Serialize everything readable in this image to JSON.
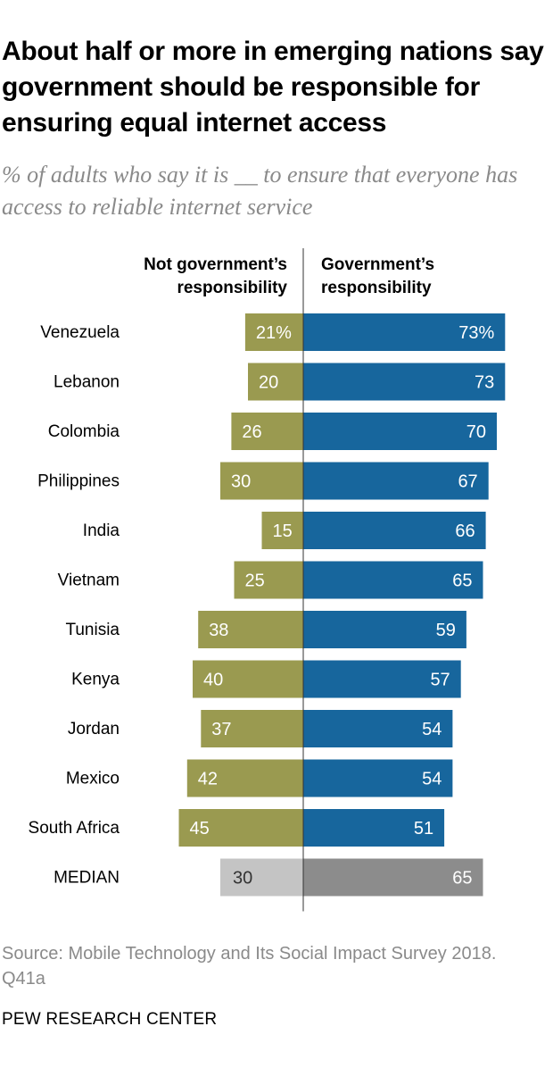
{
  "title": "About half or more in emerging nations say government should be responsible for ensuring equal internet access",
  "subtitle": "% of adults who say it is __ to ensure that everyone has access to reliable internet service",
  "source": "Source: Mobile Technology and Its Social Impact Survey 2018. Q41a",
  "brand": "PEW RESEARCH CENTER",
  "colors": {
    "not_responsibility": "#9a9a50",
    "responsibility": "#17669d",
    "median_not": "#c4c4c4",
    "median_resp": "#8c8c8c",
    "axis": "#333333"
  },
  "chart_data": {
    "type": "bar",
    "orientation": "diverging-horizontal",
    "series": [
      {
        "name_line1": "Not government’s",
        "name_line2": "responsibility",
        "values": [
          21,
          20,
          26,
          30,
          15,
          25,
          38,
          40,
          37,
          42,
          45,
          30
        ]
      },
      {
        "name_line1": "Government’s",
        "name_line2": "responsibility",
        "values": [
          73,
          73,
          70,
          67,
          66,
          65,
          59,
          57,
          54,
          54,
          51,
          65
        ]
      }
    ],
    "categories": [
      "Venezuela",
      "Lebanon",
      "Colombia",
      "Philippines",
      "India",
      "Vietnam",
      "Tunisia",
      "Kenya",
      "Jordan",
      "Mexico",
      "South Africa",
      "MEDIAN"
    ],
    "labels_not": [
      "21%",
      "20",
      "26",
      "30",
      "15",
      "25",
      "38",
      "40",
      "37",
      "42",
      "45",
      "30"
    ],
    "labels_resp": [
      "73%",
      "73",
      "70",
      "67",
      "66",
      "65",
      "59",
      "57",
      "54",
      "54",
      "51",
      "65"
    ],
    "median_category": "MEDIAN"
  }
}
